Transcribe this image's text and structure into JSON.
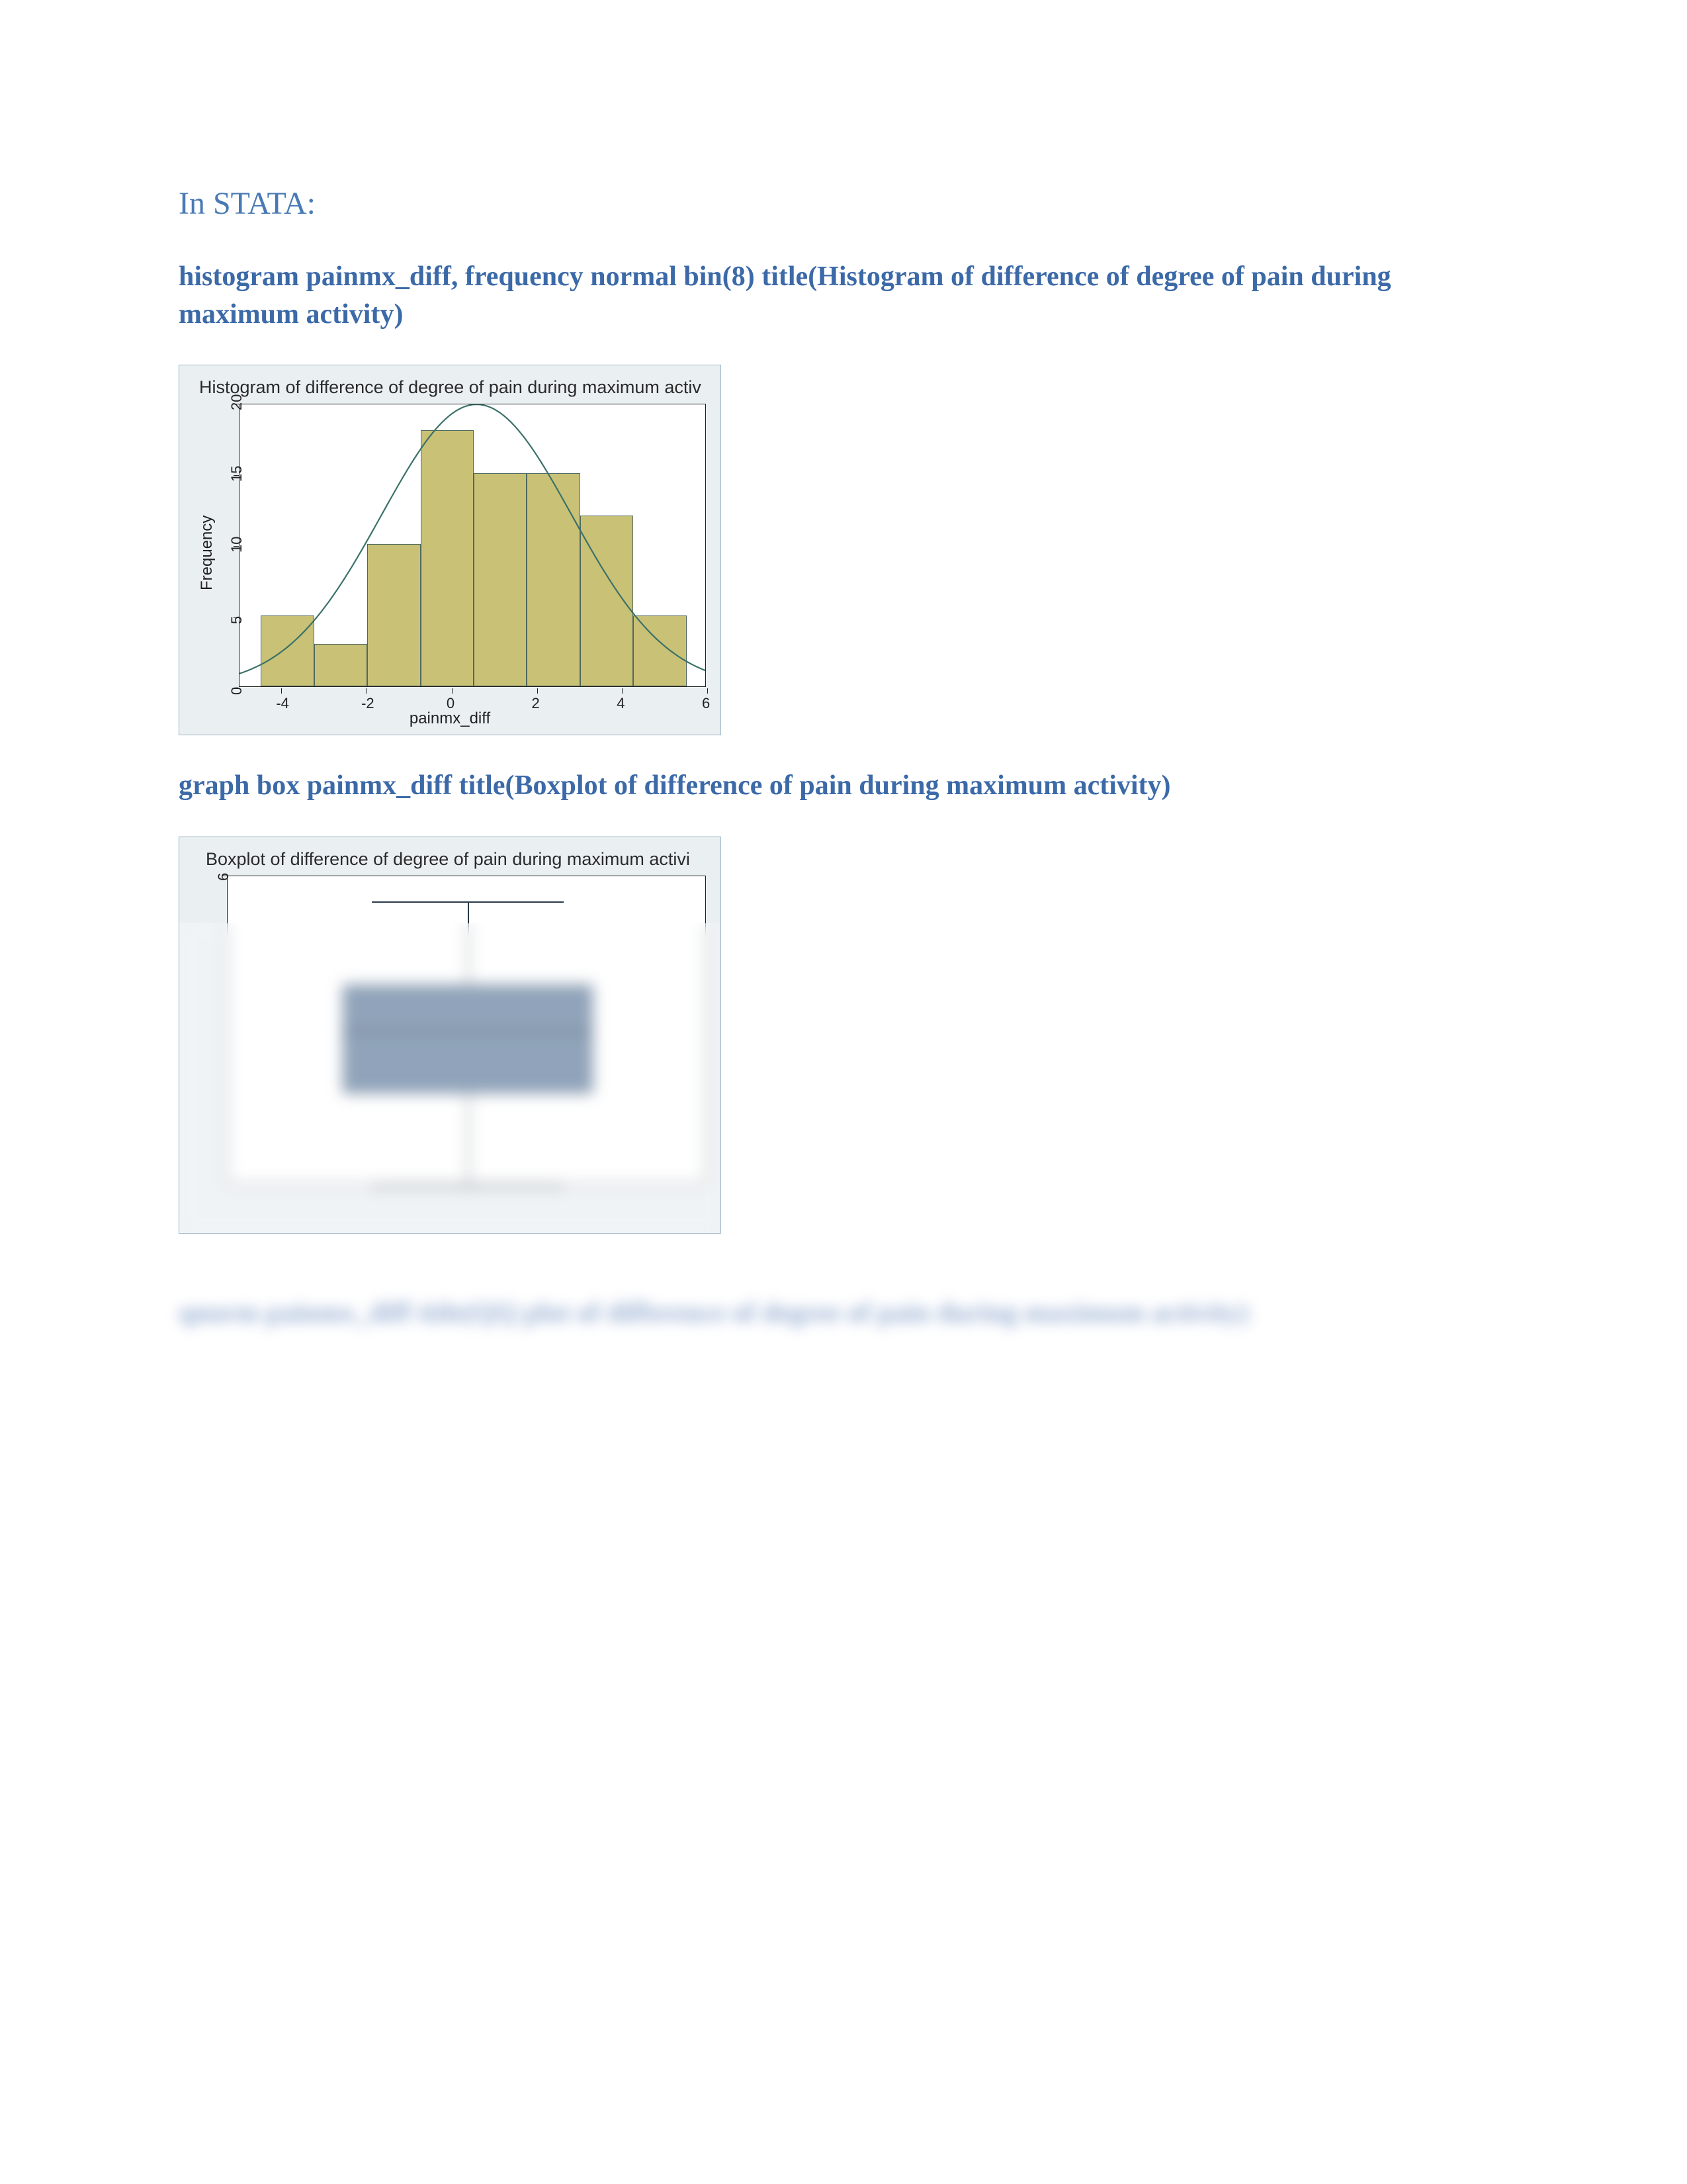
{
  "page": {
    "stata_label": "In STATA:",
    "hist_cmd": "histogram painmx_diff, frequency normal bin(8) title(Histogram of difference of degree of pain during maximum activity)",
    "box_cmd": "graph box painmx_diff title(Boxplot of difference of pain during maximum activity)",
    "blurred_cmd": "qnorm painmx_diff title(QQ plot of difference of degree of pain during maximum activity)"
  },
  "colors": {
    "heading_light": "#4a7ab5",
    "heading_bold": "#3c6aa8",
    "chart_bg": "#eaeff2",
    "chart_border": "#9ab3c4",
    "plot_bg": "#ffffff",
    "axis": "#222222",
    "bar_fill": "#c9c176",
    "bar_stroke": "#50695f",
    "curve": "#3a7168",
    "box_fill": "#6b85a3",
    "box_stroke": "#2a3948"
  },
  "histogram": {
    "type": "histogram",
    "title": "Histogram of difference of degree of pain during maximum activ",
    "xlabel": "painmx_diff",
    "ylabel": "Frequency",
    "xlim": [
      -5,
      6
    ],
    "ylim": [
      0,
      20
    ],
    "xticks": [
      -4,
      -2,
      0,
      2,
      4,
      6
    ],
    "yticks": [
      0,
      5,
      10,
      15,
      20
    ],
    "bin_width": 1.25,
    "bins": [
      {
        "x": -4.5,
        "freq": 5
      },
      {
        "x": -3.25,
        "freq": 3
      },
      {
        "x": -2.0,
        "freq": 10
      },
      {
        "x": -0.75,
        "freq": 18
      },
      {
        "x": 0.5,
        "freq": 15
      },
      {
        "x": 1.75,
        "freq": 15
      },
      {
        "x": 3.0,
        "freq": 12
      },
      {
        "x": 4.25,
        "freq": 5
      }
    ],
    "normal_curve": {
      "mean": 0.6,
      "sd": 2.25,
      "peak": 20.0
    },
    "title_fontsize": 27,
    "tick_fontsize": 22,
    "label_fontsize": 24
  },
  "boxplot": {
    "type": "boxplot",
    "title": "Boxplot of difference of degree of pain during maximum activi",
    "ylim": [
      -4,
      6
    ],
    "yticks": [
      6
    ],
    "q1": -1.0,
    "median": 1.0,
    "q3": 2.5,
    "whisker_low": -4.0,
    "whisker_high": 5.2,
    "box_left_pct": 24,
    "box_right_pct": 76,
    "whisker_cap_left_pct": 30,
    "whisker_cap_right_pct": 70,
    "title_fontsize": 27,
    "tick_fontsize": 22
  }
}
